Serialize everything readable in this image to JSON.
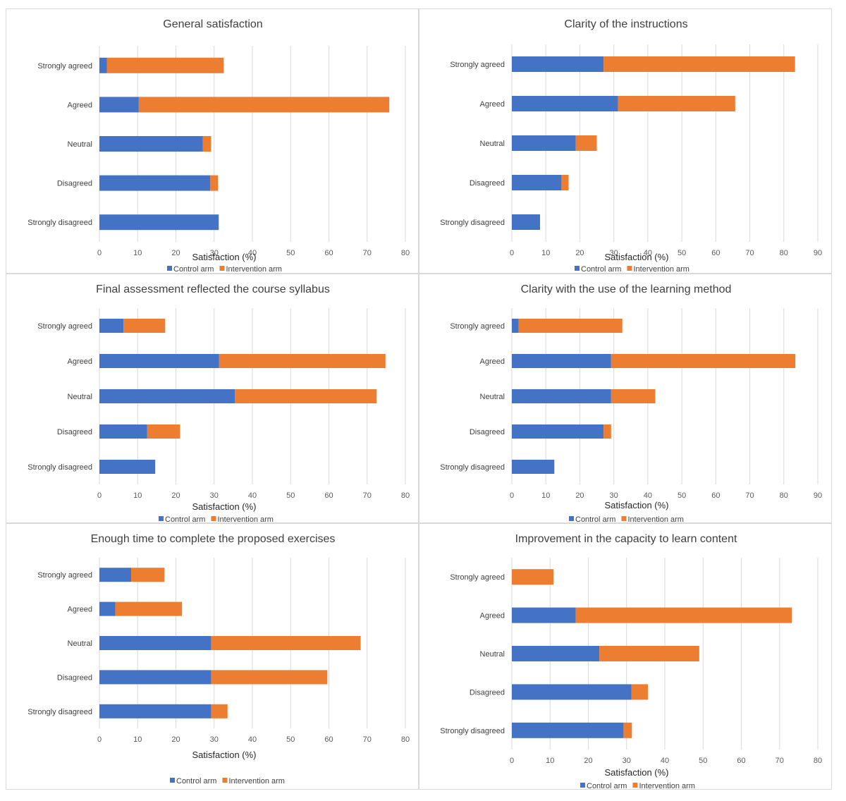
{
  "legend_labels": [
    "Control arm",
    "Intervention arm"
  ],
  "colors": {
    "control": "#4472C4",
    "intervention": "#ED7D31"
  },
  "chart_data": [
    {
      "type": "bar",
      "stacked": true,
      "orientation": "horizontal",
      "title": "General satisfaction",
      "xlabel": "Satisfaction (%)",
      "xlim": [
        0,
        80
      ],
      "xticks": [
        0,
        10,
        20,
        30,
        40,
        50,
        60,
        70,
        80
      ],
      "categories": [
        "Strongly agreed",
        "Agreed",
        "Neutral",
        "Disagreed",
        "Strongly disagreed"
      ],
      "series": [
        {
          "name": "Control arm",
          "values": [
            2,
            10.3,
            27,
            29,
            31.2
          ]
        },
        {
          "name": "Intervention arm",
          "values": [
            30.5,
            65.5,
            2.2,
            2,
            0
          ]
        }
      ],
      "legend": "bottom",
      "grid": true
    },
    {
      "type": "bar",
      "stacked": true,
      "orientation": "horizontal",
      "title": "Clarity of the instructions",
      "xlabel": "Satisfaction (%)",
      "xlim": [
        0,
        90
      ],
      "xticks": [
        0,
        10,
        20,
        30,
        40,
        50,
        60,
        70,
        80,
        90
      ],
      "categories": [
        "Strongly agreed",
        "Agreed",
        "Neutral",
        "Disagreed",
        "Strongly disagreed"
      ],
      "series": [
        {
          "name": "Control arm",
          "values": [
            27,
            31.2,
            18.8,
            14.6,
            8.3
          ]
        },
        {
          "name": "Intervention arm",
          "values": [
            56.3,
            34.5,
            6.2,
            2.1,
            0
          ]
        }
      ],
      "legend": "bottom",
      "grid": true
    },
    {
      "type": "bar",
      "stacked": true,
      "orientation": "horizontal",
      "title": "Final assessment reflected the course syllabus",
      "xlabel": "Satisfaction (%)",
      "xlim": [
        0,
        80
      ],
      "xticks": [
        0,
        10,
        20,
        30,
        40,
        50,
        60,
        70,
        80
      ],
      "categories": [
        "Strongly agreed",
        "Agreed",
        "Neutral",
        "Disagreed",
        "Strongly disagreed"
      ],
      "series": [
        {
          "name": "Control arm",
          "values": [
            6.3,
            31.3,
            35.4,
            12.5,
            14.6
          ]
        },
        {
          "name": "Intervention arm",
          "values": [
            10.9,
            43.5,
            37.1,
            8.6,
            0
          ]
        }
      ],
      "legend": "bottom",
      "grid": true
    },
    {
      "type": "bar",
      "stacked": true,
      "orientation": "horizontal",
      "title": "Clarity with the use of the learning method",
      "xlabel": "Satisfaction (%)",
      "xlim": [
        0,
        90
      ],
      "xticks": [
        0,
        10,
        20,
        30,
        40,
        50,
        60,
        70,
        80,
        90
      ],
      "categories": [
        "Strongly agreed",
        "Agreed",
        "Neutral",
        "Disagreed",
        "Strongly disagreed"
      ],
      "series": [
        {
          "name": "Control arm",
          "values": [
            2,
            29.2,
            29.2,
            27,
            12.5
          ]
        },
        {
          "name": "Intervention arm",
          "values": [
            30.5,
            54.2,
            13,
            2.2,
            0
          ]
        }
      ],
      "legend": "bottom",
      "grid": true
    },
    {
      "type": "bar",
      "stacked": true,
      "orientation": "horizontal",
      "title": "Enough time to complete the proposed exercises",
      "xlabel": "Satisfaction (%)",
      "xlim": [
        0,
        80
      ],
      "xticks": [
        0,
        10,
        20,
        30,
        40,
        50,
        60,
        70,
        80
      ],
      "categories": [
        "Strongly agreed",
        "Agreed",
        "Neutral",
        "Disagreed",
        "Strongly disagreed"
      ],
      "series": [
        {
          "name": "Control arm",
          "values": [
            8.3,
            4.2,
            29.2,
            29.2,
            29.2
          ]
        },
        {
          "name": "Intervention arm",
          "values": [
            8.7,
            17.4,
            39.1,
            30.4,
            4.3
          ]
        }
      ],
      "legend": "bottom",
      "grid": true
    },
    {
      "type": "bar",
      "stacked": true,
      "orientation": "horizontal",
      "title": "Improvement in the capacity to learn content",
      "xlabel": "Satisfaction (%)",
      "xlim": [
        0,
        80
      ],
      "xticks": [
        0,
        10,
        20,
        30,
        40,
        50,
        60,
        70,
        80
      ],
      "categories": [
        "Strongly agreed",
        "Agreed",
        "Neutral",
        "Disagreed",
        "Strongly disagreed"
      ],
      "series": [
        {
          "name": "Control arm",
          "values": [
            0,
            16.7,
            22.9,
            31.3,
            29.2
          ]
        },
        {
          "name": "Intervention arm",
          "values": [
            10.9,
            56.5,
            26.1,
            4.3,
            2.2
          ]
        }
      ],
      "legend": "bottom",
      "grid": true
    }
  ]
}
